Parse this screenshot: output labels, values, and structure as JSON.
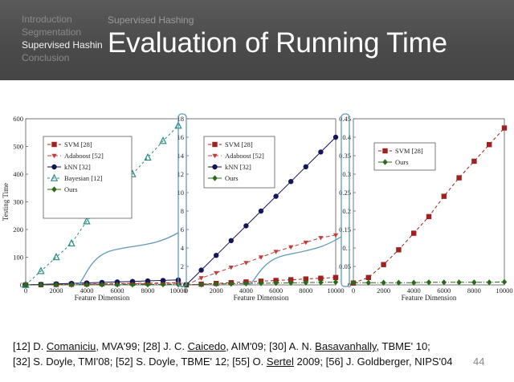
{
  "nav": {
    "items": [
      "Introduction",
      "Segmentation",
      "Supervised Hashing",
      "Conclusion"
    ],
    "active_index": 2,
    "section": "Supervised Hashing"
  },
  "slide": {
    "title": "Evaluation of Running Time",
    "page_number": "44"
  },
  "references": {
    "line1": [
      {
        "t": "[12] D. "
      },
      {
        "t": "Comaniciu",
        "u": true
      },
      {
        "t": ", MVA'99;  [28] J. C. "
      },
      {
        "t": "Caicedo",
        "u": true
      },
      {
        "t": ", AIM'09;  [30] A. N. "
      },
      {
        "t": "Basavanhally",
        "u": true
      },
      {
        "t": ", TBME' 10;"
      }
    ],
    "line2": [
      {
        "t": "[32] S. Doyle, TMI'08;  [52] S. Doyle, TBME' 12;  [55] O. "
      },
      {
        "t": "Sertel",
        "u": true
      },
      {
        "t": " 2009;  [56] J. Goldberger, NIPS'04"
      }
    ]
  },
  "colors": {
    "svm": "#a02020",
    "ada": "#c04040",
    "knn": "#15155a",
    "bayes": "#2a8a85",
    "ours": "#2a6a1a",
    "connector": "#5f9ab8"
  },
  "chart_data": [
    {
      "type": "line",
      "xlabel": "Feature Dimension",
      "ylabel": "Testing Time",
      "x": [
        0,
        1000,
        2000,
        3000,
        4000,
        5000,
        6000,
        7000,
        8000,
        9000,
        10000
      ],
      "xticks": [
        0,
        2000,
        4000,
        6000,
        8000,
        10000
      ],
      "yticks": [
        0,
        100,
        200,
        300,
        400,
        500,
        600
      ],
      "ylim": [
        0,
        600
      ],
      "series": [
        {
          "name": "SVM [28]",
          "marker": "square",
          "values": [
            0,
            0.8,
            1.6,
            2.4,
            3.2,
            4,
            4.8,
            5.6,
            6.4,
            7.2,
            8
          ]
        },
        {
          "name": "Adaboost [52]",
          "marker": "tri-down",
          "values": [
            0,
            0.6,
            1.2,
            1.8,
            2.4,
            3,
            3.6,
            4.2,
            4.8,
            5.4,
            6
          ]
        },
        {
          "name": "kNN [32]",
          "marker": "circle",
          "values": [
            0,
            1.8,
            3.6,
            5.4,
            7.2,
            9,
            10.8,
            12.6,
            14.4,
            16.2,
            18
          ]
        },
        {
          "name": "Bayesian [12]",
          "marker": "tri-up",
          "values": [
            0,
            50,
            100,
            150,
            230,
            290,
            345,
            400,
            460,
            520,
            575
          ]
        },
        {
          "name": "Ours",
          "marker": "diamond",
          "values": [
            0,
            0.2,
            0.4,
            0.5,
            0.6,
            0.8,
            1,
            1.2,
            1.4,
            1.6,
            1.8
          ]
        }
      ]
    },
    {
      "type": "line",
      "xlabel": "Feature Dimension",
      "ylabel": "",
      "x": [
        0,
        1000,
        2000,
        3000,
        4000,
        5000,
        6000,
        7000,
        8000,
        9000,
        10000
      ],
      "xticks": [
        0,
        2000,
        4000,
        6000,
        8000,
        10000
      ],
      "yticks": [
        0,
        2,
        4,
        6,
        8,
        10,
        12,
        14,
        16,
        18
      ],
      "ylim": [
        0,
        18
      ],
      "series": [
        {
          "name": "SVM [28]",
          "marker": "square",
          "values": [
            0,
            0.08,
            0.16,
            0.24,
            0.32,
            0.4,
            0.48,
            0.56,
            0.64,
            0.72,
            0.8
          ]
        },
        {
          "name": "Adaboost [52]",
          "marker": "tri-down",
          "values": [
            0,
            0.75,
            1.3,
            1.9,
            2.4,
            3,
            3.6,
            4.1,
            4.6,
            5.1,
            5.4
          ]
        },
        {
          "name": "kNN [32]",
          "marker": "circle",
          "values": [
            0,
            1.6,
            3.2,
            4.8,
            6.4,
            8,
            9.6,
            11.2,
            12.8,
            14.4,
            16
          ]
        },
        {
          "name": "Ours",
          "marker": "diamond",
          "values": [
            0,
            0.05,
            0.1,
            0.12,
            0.15,
            0.18,
            0.2,
            0.22,
            0.25,
            0.27,
            0.3
          ]
        }
      ]
    },
    {
      "type": "line",
      "xlabel": "Feature Dimension",
      "ylabel": "",
      "x": [
        0,
        1000,
        2000,
        3000,
        4000,
        5000,
        6000,
        7000,
        8000,
        9000,
        10000
      ],
      "xticks": [
        0,
        2000,
        4000,
        6000,
        8000,
        10000
      ],
      "yticks": [
        0,
        0.05,
        0.1,
        0.15,
        0.2,
        0.25,
        0.3,
        0.35,
        0.4,
        0.45
      ],
      "ytick_labels": [
        "0",
        "0.05",
        "0.1",
        "0.15",
        "0.2",
        "0.25",
        "0.3",
        "0.35",
        "0.4",
        "0.45"
      ],
      "ylim": [
        0,
        0.45
      ],
      "series": [
        {
          "name": "SVM [28]",
          "marker": "square",
          "values": [
            0.005,
            0.02,
            0.055,
            0.095,
            0.14,
            0.185,
            0.24,
            0.29,
            0.335,
            0.38,
            0.425
          ]
        },
        {
          "name": "Ours",
          "marker": "diamond",
          "values": [
            0.006,
            0.006,
            0.006,
            0.006,
            0.006,
            0.007,
            0.007,
            0.007,
            0.007,
            0.007,
            0.008
          ]
        }
      ]
    }
  ]
}
